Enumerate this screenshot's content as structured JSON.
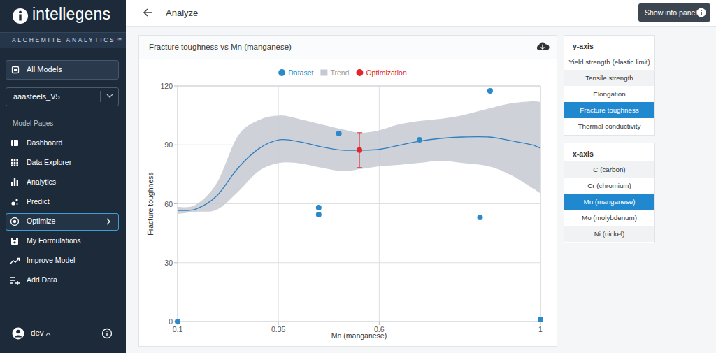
{
  "brand": {
    "name": "intellegens",
    "tagline": "ALCHEMITE ANALYTICS™"
  },
  "sidebar": {
    "all_models": "All Models",
    "model": "aaasteels_V5",
    "section": "Model Pages",
    "items": [
      "Dashboard",
      "Data Explorer",
      "Analytics",
      "Predict",
      "Optimize",
      "My Formulations",
      "Improve Model",
      "Add Data"
    ],
    "active": "Optimize",
    "user": "dev"
  },
  "header": {
    "title": "Analyze",
    "button": "Show info panel"
  },
  "y_axis_panel": {
    "title": "y-axis",
    "options": [
      "Yield strength (elastic limit)",
      "Tensile strength",
      "Elongation",
      "Fracture toughness",
      "Thermal conductivity"
    ],
    "selected": "Fracture toughness"
  },
  "x_axis_panel": {
    "title": "x-axis",
    "options": [
      "C (carbon)",
      "Cr (chromium)",
      "Mn (manganese)",
      "Mo (molybdenum)",
      "Ni (nickel)"
    ],
    "selected": "Mn (manganese)"
  },
  "chart_data": {
    "type": "scatter",
    "title": "Fracture toughness vs Mn (manganese)",
    "x_label": "Mn (manganese)",
    "y_label": "Fracture toughness",
    "xlim": [
      0.1,
      1
    ],
    "ylim": [
      0,
      120
    ],
    "xticks": [
      0.1,
      0.35,
      0.6,
      1
    ],
    "yticks": [
      0,
      30,
      60,
      90,
      120
    ],
    "grid": true,
    "legend": "top",
    "series": [
      {
        "name": "Dataset",
        "type": "scatter",
        "marker": "circle",
        "color": "#2b88c9",
        "x": [
          0.1,
          0.45,
          0.45,
          0.5,
          0.7,
          0.85,
          0.875,
          1.0
        ],
        "values": [
          0,
          58.0,
          54.5,
          95.8,
          92.6,
          53.1,
          117.5,
          1.1
        ]
      },
      {
        "name": "Trend",
        "type": "line",
        "line_style": "solid",
        "color": "#2f7fc0",
        "x": [
          0.1,
          0.145,
          0.197,
          0.249,
          0.301,
          0.353,
          0.405,
          0.457,
          0.509,
          0.551,
          0.596,
          0.648,
          0.7,
          0.752,
          0.804,
          0.873,
          0.925,
          0.977,
          1.0
        ],
        "values": [
          56.6,
          57.3,
          64,
          78,
          88,
          92.6,
          91.5,
          89,
          87.3,
          87.3,
          87.6,
          89.7,
          91.9,
          93.3,
          94,
          94,
          92.2,
          90.1,
          88.3
        ],
        "lower": [
          54.8,
          55.9,
          57,
          65.9,
          76.6,
          80.8,
          80.5,
          78.3,
          76.6,
          77.6,
          79,
          79.8,
          80.8,
          81.9,
          80.8,
          79,
          74.8,
          68.4,
          65.2
        ],
        "upper": [
          58.4,
          59.5,
          70.5,
          94.4,
          102.6,
          105,
          103,
          100.4,
          97.9,
          96.2,
          97.2,
          100.4,
          102.2,
          103.3,
          105,
          108.6,
          111.1,
          112.2,
          111.8
        ]
      },
      {
        "name": "Optimization",
        "type": "scatter",
        "marker": "circle",
        "color": "#e3262b",
        "x": [
          0.551
        ],
        "values": [
          87.3
        ],
        "error": [
          8.9
        ]
      }
    ]
  }
}
